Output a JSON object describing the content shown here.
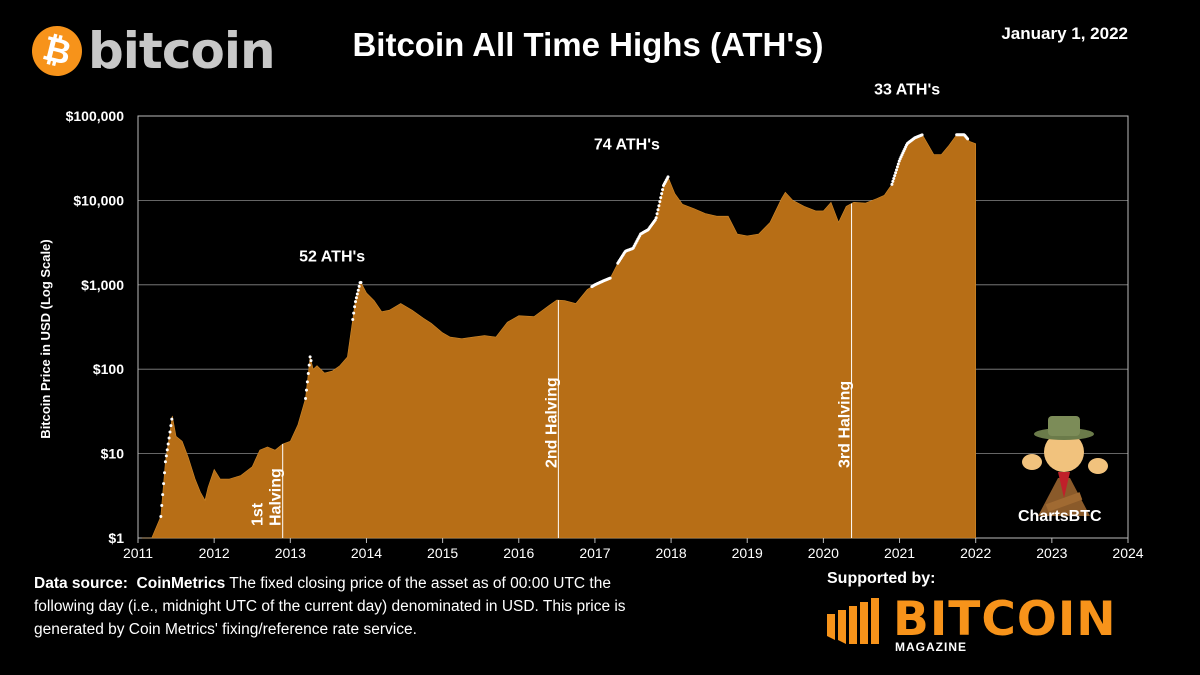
{
  "header": {
    "logo_symbol": "₿",
    "logo_text": "bitcoin",
    "title": "Bitcoin All Time Highs (ATH's)",
    "date": "January 1, 2022"
  },
  "source": {
    "label": "Data source:",
    "provider": "CoinMetrics",
    "text": "The fixed closing price of the asset as of 00:00 UTC the following day (i.e., midnight UTC of the current day) denominated in USD. This price is generated by Coin Metrics' fixing/reference rate service."
  },
  "sponsor": {
    "label": "Supported by:",
    "name": "BITCOIN",
    "sub": "MAGAZINE"
  },
  "mascot": {
    "label": "ChartsBTC"
  },
  "colors": {
    "area": "#b76e16",
    "background": "#000000",
    "ath_dot": "#ffffff",
    "grid": "#888888"
  },
  "chart_data": {
    "type": "area",
    "ylabel": "Bitcoin Price in USD (Log Scale)",
    "xlabel": "",
    "yscale": "log",
    "ylim": [
      1,
      100000
    ],
    "xlim": [
      2011,
      2024
    ],
    "grid": "horizontal",
    "x_ticks": [
      "2011",
      "2012",
      "2013",
      "2014",
      "2015",
      "2016",
      "2017",
      "2018",
      "2019",
      "2020",
      "2021",
      "2022",
      "2023",
      "2024"
    ],
    "y_ticks": [
      {
        "value": 1,
        "label": "$1"
      },
      {
        "value": 10,
        "label": "$10"
      },
      {
        "value": 100,
        "label": "$100"
      },
      {
        "value": 1000,
        "label": "$1,000"
      },
      {
        "value": 10000,
        "label": "$10,000"
      },
      {
        "value": 100000,
        "label": "$100,000"
      }
    ],
    "x": [
      2011.05,
      2011.18,
      2011.3,
      2011.36,
      2011.42,
      2011.45,
      2011.5,
      2011.58,
      2011.66,
      2011.75,
      2011.82,
      2011.88,
      2011.92,
      2012.0,
      2012.08,
      2012.2,
      2012.35,
      2012.5,
      2012.6,
      2012.7,
      2012.8,
      2012.9,
      2013.0,
      2013.1,
      2013.2,
      2013.26,
      2013.3,
      2013.35,
      2013.45,
      2013.55,
      2013.65,
      2013.75,
      2013.85,
      2013.92,
      2014.0,
      2014.1,
      2014.2,
      2014.3,
      2014.45,
      2014.6,
      2014.75,
      2014.85,
      2015.0,
      2015.1,
      2015.25,
      2015.4,
      2015.55,
      2015.7,
      2015.85,
      2016.0,
      2016.2,
      2016.4,
      2016.5,
      2016.6,
      2016.75,
      2016.9,
      2017.0,
      2017.1,
      2017.2,
      2017.3,
      2017.4,
      2017.5,
      2017.6,
      2017.7,
      2017.8,
      2017.9,
      2017.96,
      2018.05,
      2018.15,
      2018.3,
      2018.45,
      2018.6,
      2018.75,
      2018.87,
      2019.0,
      2019.15,
      2019.3,
      2019.45,
      2019.5,
      2019.6,
      2019.75,
      2019.9,
      2020.0,
      2020.1,
      2020.2,
      2020.3,
      2020.4,
      2020.55,
      2020.7,
      2020.8,
      2020.9,
      2021.0,
      2021.1,
      2021.2,
      2021.3,
      2021.38,
      2021.45,
      2021.55,
      2021.65,
      2021.75,
      2021.85,
      2021.92,
      2022.0
    ],
    "y": [
      0.3,
      0.9,
      1.8,
      8,
      18,
      28,
      16,
      14,
      9,
      5,
      3.5,
      2.8,
      4,
      6.5,
      5,
      5,
      5.5,
      7,
      11,
      12,
      11,
      13,
      14,
      22,
      45,
      140,
      100,
      110,
      90,
      95,
      110,
      140,
      600,
      1100,
      800,
      650,
      480,
      500,
      600,
      500,
      400,
      350,
      270,
      240,
      230,
      240,
      250,
      240,
      360,
      430,
      420,
      570,
      660,
      650,
      600,
      880,
      1000,
      1100,
      1200,
      1800,
      2500,
      2700,
      4000,
      4500,
      6000,
      15000,
      19000,
      12000,
      9000,
      8000,
      7000,
      6500,
      6500,
      4000,
      3800,
      4000,
      5500,
      10500,
      12500,
      10000,
      8500,
      7500,
      7500,
      9500,
      5500,
      8500,
      9500,
      9300,
      10500,
      11500,
      15500,
      30000,
      47000,
      55000,
      60000,
      45000,
      35000,
      35000,
      45000,
      60000,
      60000,
      50000,
      47000
    ],
    "ath_segments": [
      [
        2011.3,
        2011.45
      ],
      [
        2013.2,
        2013.28
      ],
      [
        2013.82,
        2013.93
      ],
      [
        2016.96,
        2017.2
      ],
      [
        2017.3,
        2017.96
      ],
      [
        2020.9,
        2021.3
      ],
      [
        2021.75,
        2021.9
      ]
    ],
    "annotations": [
      {
        "text": "52 ATH's",
        "x": 2013.55,
        "y": 1900
      },
      {
        "text": "74 ATH's",
        "x": 2017.42,
        "y": 40000
      },
      {
        "text": "33 ATH's",
        "x": 2021.1,
        "y": 180000
      }
    ],
    "halvings": [
      {
        "x": 2012.9,
        "label_lines": [
          "1st",
          "Halving"
        ]
      },
      {
        "x": 2016.52,
        "label_lines": [
          "2nd Halving"
        ]
      },
      {
        "x": 2020.37,
        "label_lines": [
          "3rd Halving"
        ]
      }
    ]
  }
}
